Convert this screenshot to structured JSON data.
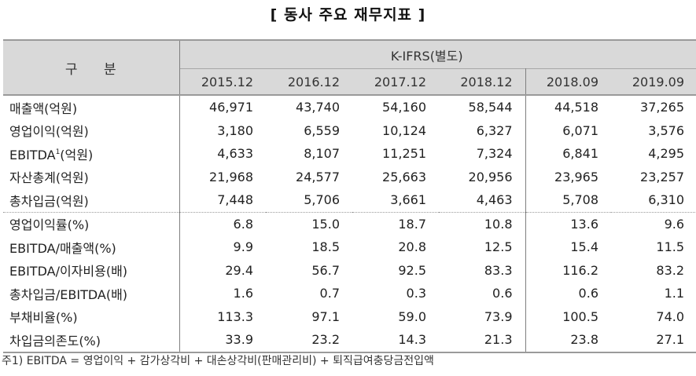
{
  "title": "[ 동사 주요 재무지표 ]",
  "table": {
    "label_header": "구 분",
    "group_header": "K-IFRS(별도)",
    "periods": [
      "2015.12",
      "2016.12",
      "2017.12",
      "2018.12",
      "2018.09",
      "2019.09"
    ],
    "section1": [
      {
        "label": "매출액(억원)",
        "values": [
          "46,971",
          "43,740",
          "54,160",
          "58,544",
          "44,518",
          "37,265"
        ]
      },
      {
        "label": "영업이익(억원)",
        "values": [
          "3,180",
          "6,559",
          "10,124",
          "6,327",
          "6,071",
          "3,576"
        ]
      },
      {
        "label_main": "EBITDA",
        "label_sup": "1",
        "label_suffix": "(억원)",
        "values": [
          "4,633",
          "8,107",
          "11,251",
          "7,324",
          "6,841",
          "4,295"
        ]
      },
      {
        "label": "자산총계(억원)",
        "values": [
          "21,968",
          "24,577",
          "25,663",
          "20,956",
          "23,965",
          "23,257"
        ]
      },
      {
        "label": "총차입금(억원)",
        "values": [
          "7,448",
          "5,706",
          "3,661",
          "4,463",
          "5,708",
          "6,310"
        ]
      }
    ],
    "section2": [
      {
        "label": "영업이익률(%)",
        "values": [
          "6.8",
          "15.0",
          "18.7",
          "10.8",
          "13.6",
          "9.6"
        ]
      },
      {
        "label": "EBITDA/매출액(%)",
        "values": [
          "9.9",
          "18.5",
          "20.8",
          "12.5",
          "15.4",
          "11.5"
        ]
      },
      {
        "label": "EBITDA/이자비용(배)",
        "values": [
          "29.4",
          "56.7",
          "92.5",
          "83.3",
          "116.2",
          "83.2"
        ]
      },
      {
        "label": "총차입금/EBITDA(배)",
        "values": [
          "1.6",
          "0.7",
          "0.3",
          "0.6",
          "0.6",
          "1.1"
        ]
      },
      {
        "label": "부채비율(%)",
        "values": [
          "113.3",
          "97.1",
          "59.0",
          "73.9",
          "100.5",
          "74.0"
        ]
      },
      {
        "label": "차입금의존도(%)",
        "values": [
          "33.9",
          "23.2",
          "14.3",
          "21.3",
          "23.8",
          "27.1"
        ]
      }
    ]
  },
  "footnote": "주1) EBITDA = 영업이익 + 감가상각비 + 대손상각비(판매관리비) + 퇴직급여충당금전입액",
  "colors": {
    "header_bg": "#d9d9d9",
    "border": "#9a9a9a",
    "divider": "#7f7f7f",
    "text": "#222222"
  }
}
